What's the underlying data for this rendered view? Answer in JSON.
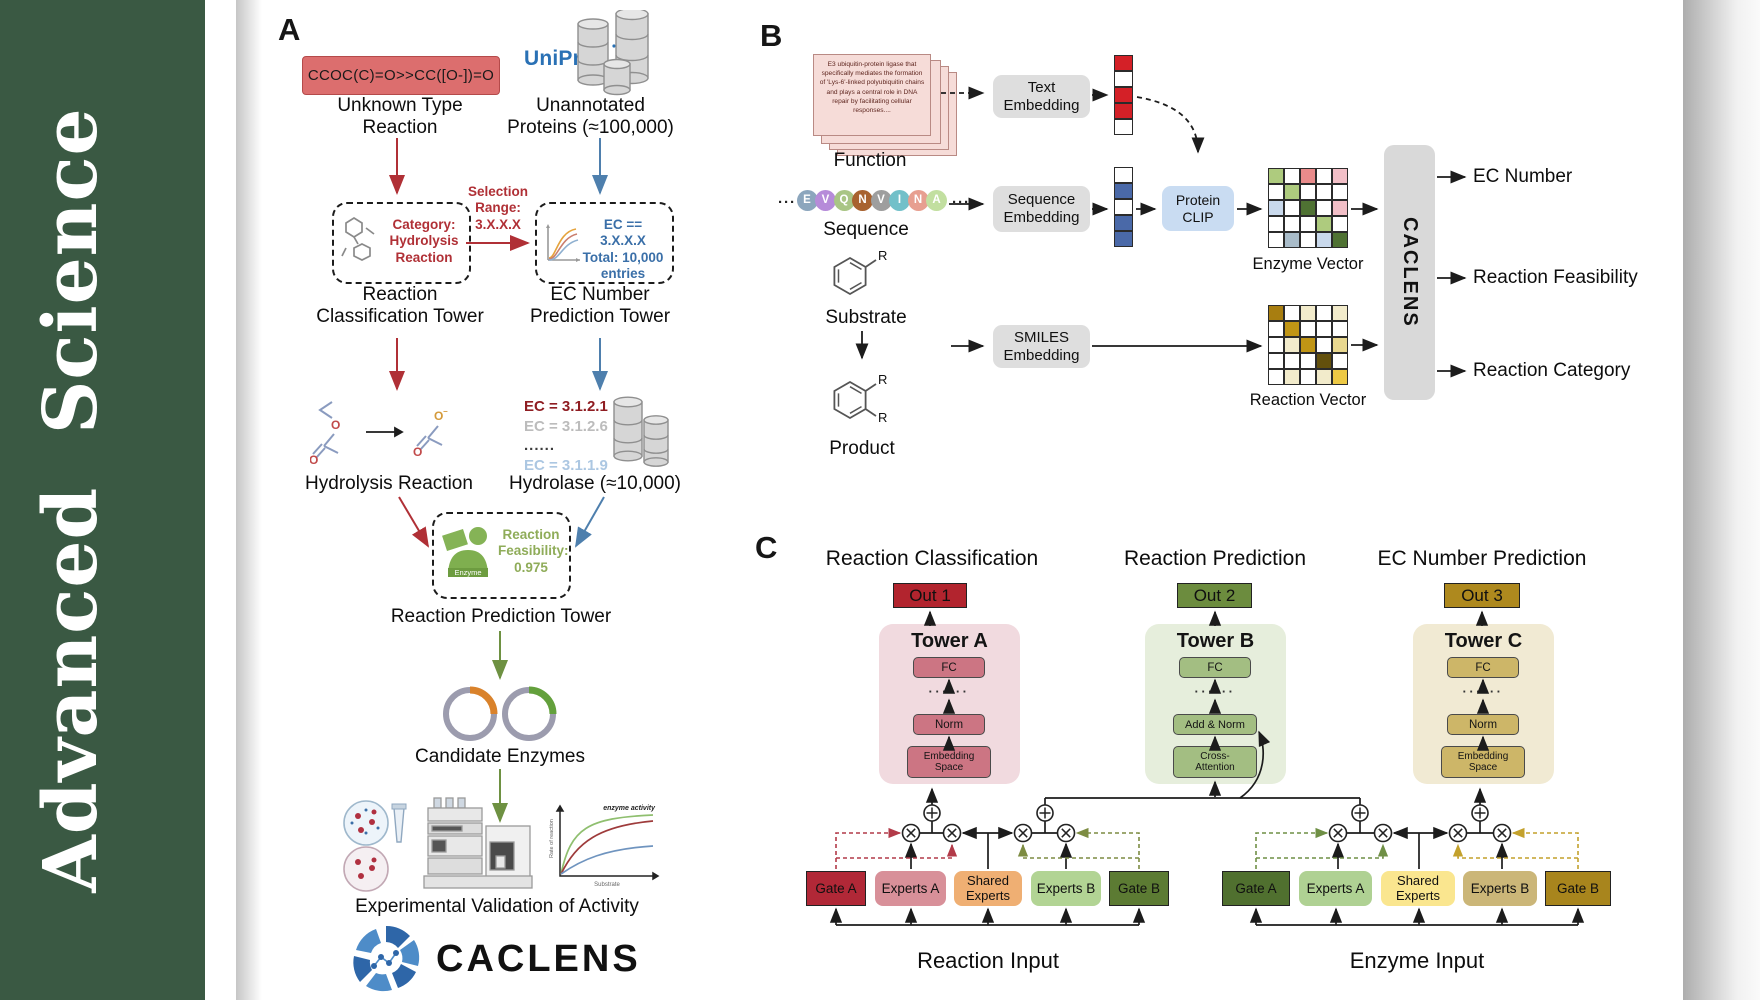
{
  "journal": {
    "name": "Advanced Science"
  },
  "colors": {
    "sidebar_green": "#3A5943",
    "red_accent": "#B03036",
    "blue_accent": "#4E7FAD",
    "green_accent": "#6E9142",
    "smiles_box": "#DC6E6E",
    "uniprot_blue": "#2A71B5",
    "out1": "#B2242E",
    "out2": "#6C8C3E",
    "out3": "#AE891E",
    "gate_a_left": "#B12837",
    "gate_b_left": "#5C7B33",
    "gate_a_right": "#50702F",
    "gate_b_right": "#A8851D",
    "shared_left": "#EFAF73",
    "shared_right": "#FAE68F",
    "clip_blue": "#C9DCF2",
    "bar_gray": "#D9D9D9"
  },
  "panel_a": {
    "label": "A",
    "smiles": "CCOC(C)=O>>CC([O-])=O",
    "unknown_reaction": "Unknown Type\nReaction",
    "uniprot": "UniProt",
    "unannotated": "Unannotated\nProteins (≈100,000)",
    "category_text": "Category:\nHydrolysis\nReaction",
    "selection_text": "Selection\nRange:\n3.X.X.X",
    "ec_box_text": "EC == 3.X.X.X\nTotal: 10,000\nentries",
    "tower1_label": "Reaction\nClassification Tower",
    "tower2_label": "EC Number\nPrediction Tower",
    "hydrolysis_label": "Hydrolysis Reaction",
    "ec_list": [
      "EC = 3.1.2.1",
      "EC = 3.1.2.6",
      "......",
      "EC = 3.1.1.9"
    ],
    "hydrolase_label": "Hydrolase (≈10,000)",
    "enzyme_icon_label": "Enzyme",
    "feasibility_text": "Reaction\nFeasibility:\n0.975",
    "tower3_label": "Reaction Prediction Tower",
    "candidates_label": "Candidate Enzymes",
    "plot": {
      "curve_label": "enzyme activity",
      "ylabel": "Rate of reaction",
      "xlabel": "Substrate"
    },
    "validation_label": "Experimental Validation of Activity",
    "brand": "CACLENS"
  },
  "panel_b": {
    "label": "B",
    "function_card": "E3 ubiquitin-protein ligase that specifically mediates the formation of 'Lys-6'-linked polyubiquitin chains and plays a central role in DNA repair by facilitating cellular responses....",
    "function_label": "Function",
    "residues": [
      {
        "t": "E",
        "c": "#8CA6BD"
      },
      {
        "t": "V",
        "c": "#B68BD9"
      },
      {
        "t": "Q",
        "c": "#A9C585"
      },
      {
        "t": "N",
        "c": "#A8622F"
      },
      {
        "t": "V",
        "c": "#9E9E9E"
      },
      {
        "t": "I",
        "c": "#72C0C9"
      },
      {
        "t": "N",
        "c": "#E79F90"
      },
      {
        "t": "A",
        "c": "#C2DFA0"
      }
    ],
    "ellipsis": "···",
    "sequence_label": "Sequence",
    "text_embedding": "Text\nEmbedding",
    "sequence_embedding": "Sequence\nEmbedding",
    "smiles_embedding": "SMILES\nEmbedding",
    "protein_clip": "Protein\nCLIP",
    "substrate_label": "Substrate",
    "product_label": "Product",
    "r_group": "R",
    "text_vector": [
      [
        "rd"
      ],
      [
        "w"
      ],
      [
        "rd"
      ],
      [
        "rd"
      ],
      [
        "w"
      ]
    ],
    "seq_vector": [
      [
        "w"
      ],
      [
        "bl"
      ],
      [
        "w"
      ],
      [
        "bl"
      ],
      [
        "bl"
      ]
    ],
    "enzyme_matrix": [
      [
        "lg",
        "w",
        "sr",
        "w",
        "pk"
      ],
      [
        "w",
        "lg",
        "w",
        "w",
        "w"
      ],
      [
        "lb",
        "w",
        "dg",
        "w",
        "pk"
      ],
      [
        "w",
        "w",
        "w",
        "lg",
        "w"
      ],
      [
        "w",
        "gb",
        "w",
        "lb",
        "dg"
      ]
    ],
    "reaction_matrix": [
      [
        "dkg",
        "w",
        "cr",
        "w",
        "cr"
      ],
      [
        "w",
        "gd",
        "w",
        "w",
        "w"
      ],
      [
        "w",
        "cr",
        "gd",
        "w",
        "lgd"
      ],
      [
        "w",
        "w",
        "w",
        "dbr",
        "w"
      ],
      [
        "w",
        "cr",
        "w",
        "cr",
        "yel"
      ]
    ],
    "enzyme_vector_label": "Enzyme Vector",
    "reaction_vector_label": "Reaction Vector",
    "caclens_vertical": "CACLENS",
    "outputs": [
      "EC Number",
      "Reaction Feasibility",
      "Reaction Category"
    ]
  },
  "panel_c": {
    "label": "C",
    "headers": [
      "Reaction Classification",
      "Reaction Prediction",
      "EC Number Prediction"
    ],
    "dots": "······",
    "towers": [
      {
        "name": "Tower A",
        "out": "Out 1",
        "fc": "FC",
        "mid": "Norm",
        "bottom": "Embedding\nSpace"
      },
      {
        "name": "Tower B",
        "out": "Out 2",
        "fc": "FC",
        "mid": "Add & Norm",
        "bottom": "Cross-\nAttention"
      },
      {
        "name": "Tower C",
        "out": "Out 3",
        "fc": "FC",
        "mid": "Norm",
        "bottom": "Embedding\nSpace"
      }
    ],
    "groups": [
      {
        "gate_a": "Gate A",
        "experts_a": "Experts A",
        "shared": "Shared\nExperts",
        "experts_b": "Experts B",
        "gate_b": "Gate B",
        "input": "Reaction Input"
      },
      {
        "gate_a": "Gate A",
        "experts_a": "Experts A",
        "shared": "Shared\nExperts",
        "experts_b": "Experts B",
        "gate_b": "Gate B",
        "input": "Enzyme Input"
      }
    ]
  }
}
